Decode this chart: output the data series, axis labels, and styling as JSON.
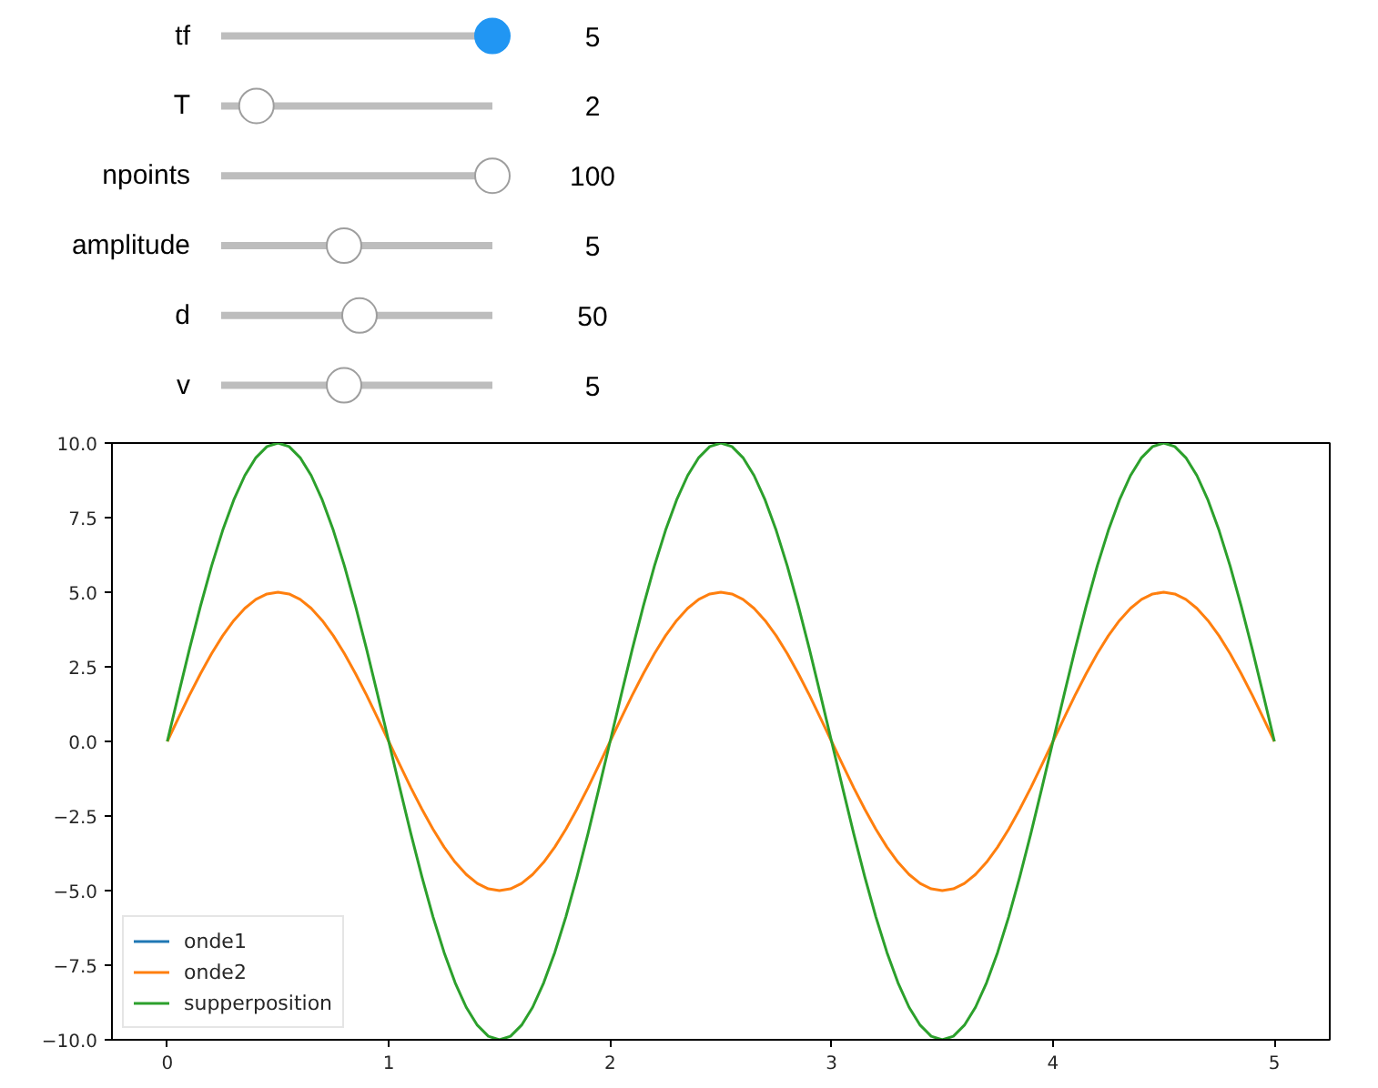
{
  "chart_data": [
    {
      "type": "other",
      "categories": [
        "tf",
        "T",
        "npoints",
        "amplitude",
        "d",
        "v"
      ],
      "values": [
        5,
        2,
        100,
        5,
        50,
        5
      ],
      "data_labels": true
    },
    {
      "type": "line",
      "legend": "bottom left",
      "xlim": [
        -0.25,
        5.25
      ],
      "ylim": [
        -10,
        10
      ],
      "xticks": [
        0,
        1,
        2,
        3,
        4,
        5
      ],
      "yticks": [
        {
          "value": -10,
          "label": "−10.0"
        },
        {
          "value": -7.5,
          "label": "−7.5"
        },
        {
          "value": -5,
          "label": "−5.0"
        },
        {
          "value": -2.5,
          "label": "−2.5"
        },
        {
          "value": 0,
          "label": "0.0"
        },
        {
          "value": 2.5,
          "label": "2.5"
        },
        {
          "value": 5,
          "label": "5.0"
        },
        {
          "value": 7.5,
          "label": "7.5"
        },
        {
          "value": 10,
          "label": "10.0"
        }
      ],
      "x": [
        0,
        0.05,
        0.1,
        0.15,
        0.2,
        0.25,
        0.3,
        0.35,
        0.4,
        0.45,
        0.5,
        0.55,
        0.6,
        0.65,
        0.7,
        0.75,
        0.8,
        0.85,
        0.9,
        0.95,
        1.0,
        1.05,
        1.1,
        1.15,
        1.2,
        1.25,
        1.3,
        1.35,
        1.4,
        1.45,
        1.5,
        1.55,
        1.6,
        1.65,
        1.7,
        1.75,
        1.8,
        1.85,
        1.9,
        1.95,
        2.0,
        2.05,
        2.1,
        2.15,
        2.2,
        2.25,
        2.3,
        2.35,
        2.4,
        2.45,
        2.5,
        2.55,
        2.6,
        2.65,
        2.7,
        2.75,
        2.8,
        2.85,
        2.9,
        2.95,
        3.0,
        3.05,
        3.1,
        3.15,
        3.2,
        3.25,
        3.3,
        3.35,
        3.4,
        3.45,
        3.5,
        3.55,
        3.6,
        3.65,
        3.7,
        3.75,
        3.8,
        3.85,
        3.9,
        3.95,
        4.0,
        4.05,
        4.1,
        4.15,
        4.2,
        4.25,
        4.3,
        4.35,
        4.4,
        4.45,
        4.5,
        4.55,
        4.6,
        4.65,
        4.7,
        4.75,
        4.8,
        4.85,
        4.9,
        4.95,
        5.0
      ],
      "series": [
        {
          "name": "onde1",
          "color": "#1f77b4",
          "values": [
            null,
            null,
            null,
            null,
            null,
            null,
            null,
            null,
            null,
            null,
            null,
            null,
            null,
            null,
            null,
            null,
            null,
            null,
            null,
            null,
            null,
            null,
            null,
            null,
            null,
            null,
            null,
            null,
            null,
            null,
            null,
            null,
            null,
            null,
            null,
            null,
            null,
            null,
            null,
            null,
            null,
            null,
            null,
            null,
            null,
            null,
            null,
            null,
            null,
            null,
            null,
            null,
            null,
            null,
            null,
            null,
            null,
            null,
            null,
            null,
            null,
            null,
            null,
            null,
            null,
            null,
            null,
            null,
            null,
            null,
            null,
            null,
            null,
            null,
            null,
            null,
            null,
            null,
            null,
            null,
            null,
            null,
            null,
            null,
            null,
            null,
            null,
            null,
            null,
            null,
            null,
            null,
            null,
            null,
            null,
            null,
            null,
            null,
            null,
            null,
            null
          ]
        },
        {
          "name": "onde2",
          "color": "#ff7f0e",
          "values": [
            0,
            0.78,
            1.55,
            2.27,
            2.94,
            3.54,
            4.05,
            4.46,
            4.76,
            4.94,
            5.0,
            4.94,
            4.76,
            4.46,
            4.05,
            3.54,
            2.94,
            2.27,
            1.55,
            0.78,
            0,
            -0.78,
            -1.55,
            -2.27,
            -2.94,
            -3.54,
            -4.05,
            -4.46,
            -4.76,
            -4.94,
            -5.0,
            -4.94,
            -4.76,
            -4.46,
            -4.05,
            -3.54,
            -2.94,
            -2.27,
            -1.55,
            -0.78,
            0,
            0.78,
            1.55,
            2.27,
            2.94,
            3.54,
            4.05,
            4.46,
            4.76,
            4.94,
            5.0,
            4.94,
            4.76,
            4.46,
            4.05,
            3.54,
            2.94,
            2.27,
            1.55,
            0.78,
            0,
            -0.78,
            -1.55,
            -2.27,
            -2.94,
            -3.54,
            -4.05,
            -4.46,
            -4.76,
            -4.94,
            -5.0,
            -4.94,
            -4.76,
            -4.46,
            -4.05,
            -3.54,
            -2.94,
            -2.27,
            -1.55,
            -0.78,
            0,
            0.78,
            1.55,
            2.27,
            2.94,
            3.54,
            4.05,
            4.46,
            4.76,
            4.94,
            5.0,
            4.94,
            4.76,
            4.46,
            4.05,
            3.54,
            2.94,
            2.27,
            1.55,
            0.78,
            0
          ]
        },
        {
          "name": "supperposition",
          "color": "#2ca02c",
          "values": [
            0,
            1.56,
            3.09,
            4.54,
            5.88,
            7.07,
            8.09,
            8.91,
            9.51,
            9.88,
            10.0,
            9.88,
            9.51,
            8.91,
            8.09,
            7.07,
            5.88,
            4.54,
            3.09,
            1.56,
            0,
            -1.56,
            -3.09,
            -4.54,
            -5.88,
            -7.07,
            -8.09,
            -8.91,
            -9.51,
            -9.88,
            -10.0,
            -9.88,
            -9.51,
            -8.91,
            -8.09,
            -7.07,
            -5.88,
            -4.54,
            -3.09,
            -1.56,
            0,
            1.56,
            3.09,
            4.54,
            5.88,
            7.07,
            8.09,
            8.91,
            9.51,
            9.88,
            10.0,
            9.88,
            9.51,
            8.91,
            8.09,
            7.07,
            5.88,
            4.54,
            3.09,
            1.56,
            0,
            -1.56,
            -3.09,
            -4.54,
            -5.88,
            -7.07,
            -8.09,
            -8.91,
            -9.51,
            -9.88,
            -10.0,
            -9.88,
            -9.51,
            -8.91,
            -8.09,
            -7.07,
            -5.88,
            -4.54,
            -3.09,
            -1.56,
            0,
            1.56,
            3.09,
            4.54,
            5.88,
            7.07,
            8.09,
            8.91,
            9.51,
            9.88,
            10.0,
            9.88,
            9.51,
            8.91,
            8.09,
            7.07,
            5.88,
            4.54,
            3.09,
            1.56,
            0
          ]
        }
      ]
    }
  ]
}
